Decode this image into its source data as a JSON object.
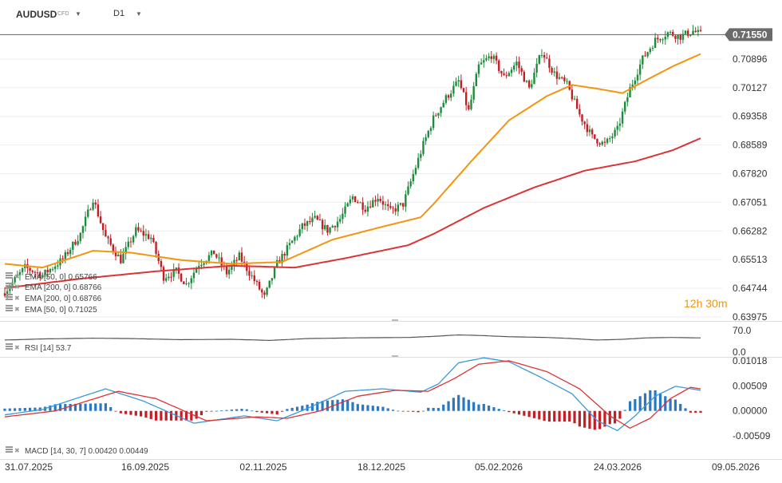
{
  "header": {
    "symbol": "AUDUSD",
    "instrument_type": "CFD",
    "timeframe": "D1",
    "countdown": "12h 30m"
  },
  "price_axis": {
    "ticks": [
      "0.70896",
      "0.70127",
      "0.69358",
      "0.68589",
      "0.67820",
      "0.67051",
      "0.66282",
      "0.65513",
      "0.64744",
      "0.63975"
    ],
    "current_price_label": "0.71550",
    "current_price": 0.7155
  },
  "date_axis": {
    "ticks": [
      "31.07.2025",
      "16.09.2025",
      "02.11.2025",
      "18.12.2025",
      "05.02.2026",
      "24.03.2026",
      "09.05.2026"
    ]
  },
  "legend": {
    "ema1_label": "EMA [50, 0]",
    "ema1_value": "0.65766",
    "ema2_label": "EMA [200, 0]",
    "ema2_value": "0.68766",
    "ema3_label": "EMA [50, 0]",
    "ema3_value": "0.71025",
    "rsi_label": "RSI [14]",
    "rsi_value": "53.7",
    "macd_label": "MACD [14, 30, 7]",
    "macd_value1": "0.00420",
    "macd_value2": "0.00449"
  },
  "rsi_axis": {
    "ticks": [
      "70.0",
      "0.0"
    ]
  },
  "macd_axis": {
    "ticks": [
      "0.01018",
      "0.00509",
      "0.00000",
      "-0.00509"
    ]
  },
  "colors": {
    "bull": "#1e8c3c",
    "bear": "#c41e24",
    "ema_fast": "#f2950f",
    "ema_slow": "#dc3434",
    "rsi": "#555555",
    "macd_line": "#3a9ad9",
    "signal_line": "#dc3434",
    "hist_pos": "#2a78c2",
    "hist_neg": "#c41e24"
  },
  "chart_data": {
    "type": "candlestick",
    "price_range": [
      0.63975,
      0.71665
    ],
    "rsi_range": [
      0,
      100
    ],
    "macd_range": [
      -0.0093,
      0.011
    ],
    "anchors": {
      "close": [
        [
          0,
          0.6465
        ],
        [
          8,
          0.653
        ],
        [
          15,
          0.651
        ],
        [
          23,
          0.6552
        ],
        [
          30,
          0.662
        ],
        [
          35,
          0.6715
        ],
        [
          40,
          0.661
        ],
        [
          46,
          0.655
        ],
        [
          52,
          0.663
        ],
        [
          58,
          0.661
        ],
        [
          63,
          0.6505
        ],
        [
          68,
          0.652
        ],
        [
          72,
          0.6485
        ],
        [
          77,
          0.654
        ],
        [
          83,
          0.657
        ],
        [
          88,
          0.6515
        ],
        [
          93,
          0.656
        ],
        [
          99,
          0.6495
        ],
        [
          103,
          0.645
        ],
        [
          108,
          0.654
        ],
        [
          112,
          0.658
        ],
        [
          118,
          0.664
        ],
        [
          123,
          0.666
        ],
        [
          128,
          0.663
        ],
        [
          133,
          0.666
        ],
        [
          138,
          0.672
        ],
        [
          143,
          0.669
        ],
        [
          148,
          0.672
        ],
        [
          153,
          0.668
        ],
        [
          158,
          0.67
        ],
        [
          162,
          0.678
        ],
        [
          166,
          0.686
        ],
        [
          170,
          0.693
        ],
        [
          175,
          0.6985
        ],
        [
          180,
          0.703
        ],
        [
          184,
          0.695
        ],
        [
          188,
          0.707
        ],
        [
          193,
          0.71
        ],
        [
          198,
          0.704
        ],
        [
          203,
          0.708
        ],
        [
          208,
          0.701
        ],
        [
          213,
          0.711
        ],
        [
          218,
          0.705
        ],
        [
          223,
          0.702
        ],
        [
          228,
          0.694
        ],
        [
          233,
          0.688
        ],
        [
          238,
          0.686
        ],
        [
          243,
          0.69
        ],
        [
          248,
          0.701
        ],
        [
          253,
          0.709
        ],
        [
          258,
          0.714
        ],
        [
          263,
          0.716
        ],
        [
          268,
          0.715
        ],
        [
          273,
          0.7165
        ],
        [
          276,
          0.7155
        ]
      ],
      "ema_fast": [
        [
          0,
          0.654
        ],
        [
          15,
          0.653
        ],
        [
          35,
          0.6575
        ],
        [
          50,
          0.657
        ],
        [
          70,
          0.655
        ],
        [
          90,
          0.654
        ],
        [
          110,
          0.6545
        ],
        [
          130,
          0.6605
        ],
        [
          150,
          0.664
        ],
        [
          165,
          0.6665
        ],
        [
          170,
          0.67
        ],
        [
          185,
          0.6815
        ],
        [
          200,
          0.6925
        ],
        [
          215,
          0.699
        ],
        [
          225,
          0.702
        ],
        [
          235,
          0.701
        ],
        [
          245,
          0.6998
        ],
        [
          255,
          0.7035
        ],
        [
          265,
          0.707
        ],
        [
          276,
          0.7103
        ]
      ],
      "ema_slow": [
        [
          0,
          0.6475
        ],
        [
          30,
          0.65
        ],
        [
          60,
          0.652
        ],
        [
          90,
          0.6535
        ],
        [
          115,
          0.653
        ],
        [
          135,
          0.6555
        ],
        [
          160,
          0.659
        ],
        [
          170,
          0.662
        ],
        [
          190,
          0.669
        ],
        [
          210,
          0.6745
        ],
        [
          230,
          0.679
        ],
        [
          250,
          0.6815
        ],
        [
          265,
          0.6845
        ],
        [
          276,
          0.6877
        ]
      ],
      "rsi": [
        [
          0,
          48
        ],
        [
          15,
          51
        ],
        [
          35,
          53
        ],
        [
          50,
          52
        ],
        [
          70,
          49
        ],
        [
          90,
          50
        ],
        [
          105,
          47
        ],
        [
          120,
          52
        ],
        [
          140,
          54
        ],
        [
          160,
          55
        ],
        [
          170,
          58
        ],
        [
          180,
          62
        ],
        [
          190,
          60
        ],
        [
          200,
          57
        ],
        [
          215,
          55
        ],
        [
          225,
          52
        ],
        [
          235,
          48
        ],
        [
          245,
          50
        ],
        [
          255,
          54
        ],
        [
          265,
          55
        ],
        [
          276,
          53.7
        ]
      ],
      "macd": [
        [
          0,
          -0.0008
        ],
        [
          15,
          0.0003
        ],
        [
          40,
          0.0045
        ],
        [
          55,
          0.002
        ],
        [
          75,
          -0.0025
        ],
        [
          95,
          -0.001
        ],
        [
          108,
          -0.002
        ],
        [
          120,
          0.0005
        ],
        [
          135,
          0.004
        ],
        [
          150,
          0.0045
        ],
        [
          165,
          0.0038
        ],
        [
          172,
          0.0055
        ],
        [
          180,
          0.0098
        ],
        [
          190,
          0.0108
        ],
        [
          200,
          0.01
        ],
        [
          212,
          0.007
        ],
        [
          225,
          0.0035
        ],
        [
          235,
          -0.002
        ],
        [
          243,
          -0.004
        ],
        [
          250,
          -0.001
        ],
        [
          258,
          0.003
        ],
        [
          266,
          0.005
        ],
        [
          276,
          0.0042
        ]
      ],
      "signal": [
        [
          0,
          -0.0012
        ],
        [
          20,
          0.0
        ],
        [
          45,
          0.004
        ],
        [
          60,
          0.0025
        ],
        [
          80,
          -0.002
        ],
        [
          100,
          -0.0012
        ],
        [
          112,
          -0.0015
        ],
        [
          125,
          0.0
        ],
        [
          140,
          0.003
        ],
        [
          155,
          0.0042
        ],
        [
          168,
          0.004
        ],
        [
          178,
          0.0065
        ],
        [
          188,
          0.0095
        ],
        [
          200,
          0.0102
        ],
        [
          215,
          0.008
        ],
        [
          228,
          0.0045
        ],
        [
          240,
          -0.001
        ],
        [
          248,
          -0.0035
        ],
        [
          256,
          -0.0015
        ],
        [
          264,
          0.0025
        ],
        [
          272,
          0.0048
        ],
        [
          276,
          0.0045
        ]
      ]
    },
    "bar_count": 277
  }
}
